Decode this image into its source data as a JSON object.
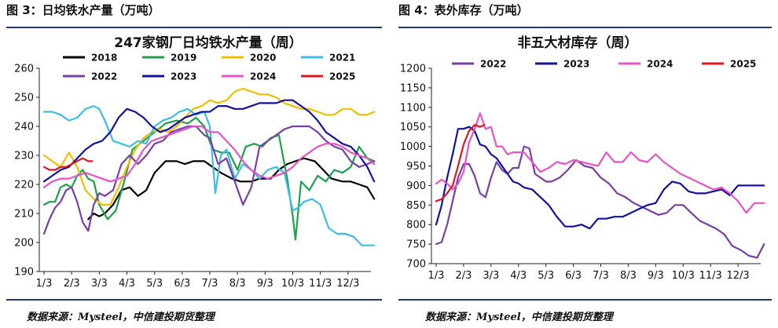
{
  "figures": [
    {
      "caption": "图 3：日均铁水产量（万吨）",
      "source": "数据来源：Mysteel，中信建投期货整理"
    },
    {
      "caption": "图 4：表外库存（万吨）",
      "source": "数据来源：Mysteel，中信建投期货整理"
    }
  ],
  "colors": {
    "2018": "#000000",
    "2019": "#1fa04a",
    "2020": "#f0c000",
    "2021": "#3cbde8",
    "2022": "#7a3fa6",
    "2023": "#12129e",
    "2024": "#ea52c8",
    "2025": "#e0161d",
    "rule": "#1f3864"
  },
  "chart_data": [
    {
      "type": "line",
      "title": "247家钢厂日均铁水产量（周）",
      "x_ticks": [
        "1/3",
        "2/3",
        "3/3",
        "4/3",
        "5/3",
        "6/3",
        "7/3",
        "8/3",
        "9/3",
        "10/3",
        "11/3",
        "12/3"
      ],
      "ylim": [
        190,
        260
      ],
      "y_ticks": [
        190,
        200,
        210,
        220,
        230,
        240,
        250,
        260
      ],
      "grid": false,
      "legend": "top",
      "series": [
        {
          "name": "2018",
          "x": [
            2.6,
            2.8,
            3.0,
            3.2,
            3.5,
            3.8,
            4.1,
            4.4,
            4.7,
            5.0,
            5.4,
            5.8,
            6.1,
            6.4,
            6.8,
            7.1,
            7.4,
            7.8,
            8.1,
            8.5,
            8.8,
            9.2,
            9.5,
            9.8,
            10.1,
            10.4,
            10.8,
            11.1,
            11.4,
            11.8,
            12.1,
            12.4,
            12.7,
            12.95
          ],
          "y": [
            208,
            210,
            209,
            210,
            213,
            218,
            219,
            216,
            218,
            224,
            228,
            228,
            227,
            228,
            228,
            226,
            224,
            222,
            221,
            221,
            222,
            222,
            225,
            227,
            228,
            229,
            228,
            225,
            222,
            221,
            221,
            220,
            219,
            215
          ]
        },
        {
          "name": "2019",
          "x": [
            1.0,
            1.2,
            1.4,
            1.6,
            1.8,
            2.0,
            2.2,
            2.4,
            2.6,
            2.8,
            3.0,
            3.3,
            3.6,
            3.9,
            4.2,
            4.6,
            5.0,
            5.4,
            5.8,
            6.2,
            6.5,
            6.8,
            7.1,
            7.4,
            7.7,
            8.0,
            8.3,
            8.6,
            8.9,
            9.2,
            9.5,
            9.8,
            10.0,
            10.1,
            10.3,
            10.6,
            10.9,
            11.2,
            11.5,
            11.8,
            12.1,
            12.4,
            12.7,
            12.95
          ],
          "y": [
            213,
            214,
            214,
            219,
            220,
            219,
            223,
            225,
            222,
            221,
            213,
            208,
            211,
            221,
            232,
            235,
            238,
            241,
            242,
            241,
            243,
            240,
            232,
            231,
            231,
            225,
            233,
            234,
            233,
            236,
            237,
            222,
            209,
            201,
            221,
            218,
            223,
            221,
            225,
            224,
            226,
            233,
            229,
            228
          ]
        },
        {
          "name": "2020",
          "x": [
            1.0,
            1.3,
            1.6,
            1.9,
            2.2,
            2.5,
            2.8,
            3.1,
            3.4,
            3.7,
            4.0,
            4.3,
            4.6,
            4.9,
            5.2,
            5.5,
            5.8,
            6.1,
            6.4,
            6.7,
            7.0,
            7.3,
            7.6,
            7.9,
            8.2,
            8.5,
            8.8,
            9.1,
            9.4,
            9.7,
            10.0,
            10.3,
            10.6,
            10.9,
            11.2,
            11.5,
            11.8,
            12.1,
            12.4,
            12.7,
            12.95
          ],
          "y": [
            230,
            228,
            226,
            231,
            226,
            218,
            215,
            213,
            213,
            219,
            226,
            232,
            236,
            238,
            239,
            238,
            240,
            243,
            246,
            247,
            249,
            248,
            249,
            252,
            253,
            252,
            251,
            251,
            250,
            248,
            247,
            246,
            246,
            245,
            244,
            244,
            246,
            246,
            244,
            244,
            245
          ]
        },
        {
          "name": "2021",
          "x": [
            1.0,
            1.3,
            1.6,
            1.9,
            2.2,
            2.5,
            2.8,
            3.0,
            3.2,
            3.5,
            3.8,
            4.1,
            4.4,
            4.7,
            5.0,
            5.3,
            5.6,
            5.9,
            6.2,
            6.5,
            6.8,
            7.0,
            7.2,
            7.4,
            7.6,
            7.9,
            8.2,
            8.5,
            8.8,
            9.1,
            9.4,
            9.7,
            10.0,
            10.2,
            10.4,
            10.7,
            11.0,
            11.3,
            11.6,
            11.9,
            12.2,
            12.5,
            12.8,
            12.95
          ],
          "y": [
            245,
            245,
            244,
            242,
            243,
            246,
            247,
            246,
            242,
            235,
            234,
            233,
            235,
            234,
            240,
            242,
            243,
            245,
            246,
            244,
            245,
            240,
            217,
            230,
            232,
            222,
            227,
            225,
            222,
            225,
            226,
            224,
            211,
            212,
            214,
            215,
            213,
            205,
            203,
            203,
            202,
            199,
            199,
            199
          ]
        },
        {
          "name": "2022",
          "x": [
            1.0,
            1.2,
            1.4,
            1.6,
            1.8,
            2.0,
            2.2,
            2.4,
            2.6,
            2.8,
            3.0,
            3.2,
            3.5,
            3.8,
            4.1,
            4.4,
            4.7,
            5.0,
            5.3,
            5.6,
            5.9,
            6.2,
            6.5,
            6.8,
            7.0,
            7.3,
            7.6,
            7.9,
            8.2,
            8.5,
            8.8,
            9.1,
            9.4,
            9.7,
            10.0,
            10.3,
            10.6,
            10.9,
            11.2,
            11.5,
            11.8,
            12.1,
            12.4,
            12.7,
            12.95
          ],
          "y": [
            203,
            208,
            212,
            214,
            218,
            219,
            214,
            207,
            204,
            213,
            217,
            216,
            218,
            227,
            230,
            227,
            230,
            234,
            235,
            238,
            239,
            240,
            240,
            237,
            236,
            227,
            229,
            221,
            213,
            219,
            233,
            235,
            237,
            239,
            240,
            240,
            240,
            238,
            235,
            233,
            232,
            228,
            226,
            227,
            228
          ]
        },
        {
          "name": "2023",
          "x": [
            1.0,
            1.3,
            1.6,
            1.9,
            2.2,
            2.5,
            2.8,
            3.1,
            3.4,
            3.7,
            4.0,
            4.3,
            4.6,
            4.9,
            5.2,
            5.5,
            5.8,
            6.1,
            6.4,
            6.7,
            7.0,
            7.3,
            7.6,
            7.9,
            8.2,
            8.5,
            8.8,
            9.1,
            9.4,
            9.7,
            10.0,
            10.3,
            10.6,
            10.9,
            11.2,
            11.5,
            11.8,
            12.1,
            12.4,
            12.7,
            12.95
          ],
          "y": [
            221,
            223,
            225,
            226,
            229,
            232,
            234,
            235,
            238,
            243,
            246,
            245,
            243,
            240,
            238,
            239,
            241,
            243,
            244,
            245,
            245,
            247,
            247,
            246,
            246,
            247,
            248,
            248,
            248,
            249,
            249,
            247,
            245,
            242,
            238,
            236,
            234,
            233,
            230,
            226,
            221
          ]
        },
        {
          "name": "2024",
          "x": [
            1.0,
            1.3,
            1.6,
            1.9,
            2.2,
            2.5,
            2.8,
            3.1,
            3.4,
            3.7,
            4.0,
            4.3,
            4.6,
            4.9,
            5.2,
            5.5,
            5.8,
            6.1,
            6.4,
            6.7,
            7.0,
            7.3,
            7.6,
            7.9,
            8.2,
            8.5,
            8.8,
            9.1,
            9.4,
            9.7,
            10.0,
            10.3,
            10.6,
            10.9,
            11.2,
            11.5,
            11.8,
            12.1,
            12.4,
            12.7,
            12.95
          ],
          "y": [
            219,
            221,
            222,
            222,
            223,
            224,
            223,
            222,
            221,
            222,
            223,
            227,
            232,
            235,
            236,
            237,
            238,
            239,
            240,
            240,
            238,
            238,
            235,
            232,
            228,
            225,
            223,
            222,
            223,
            224,
            226,
            229,
            231,
            233,
            234,
            234,
            233,
            231,
            230,
            229,
            227
          ]
        },
        {
          "name": "2025",
          "x": [
            1.0,
            1.2,
            1.4,
            1.6,
            1.8,
            2.0,
            2.2,
            2.4,
            2.6,
            2.75
          ],
          "y": [
            226,
            225,
            225,
            226,
            226,
            227,
            228,
            229,
            228,
            228
          ]
        }
      ]
    },
    {
      "type": "line",
      "title": "非五大材库存（周）",
      "x_ticks": [
        "1/3",
        "2/3",
        "3/3",
        "4/3",
        "5/3",
        "6/3",
        "7/3",
        "8/3",
        "9/3",
        "10/3",
        "11/3",
        "12/3"
      ],
      "ylim": [
        700,
        1200
      ],
      "y_ticks": [
        700,
        750,
        800,
        850,
        900,
        950,
        1000,
        1050,
        1100,
        1150,
        1200
      ],
      "grid": false,
      "legend": "top",
      "series": [
        {
          "name": "2022",
          "x": [
            1.0,
            1.2,
            1.4,
            1.6,
            1.8,
            2.0,
            2.2,
            2.4,
            2.6,
            2.8,
            3.0,
            3.2,
            3.4,
            3.6,
            3.8,
            4.0,
            4.2,
            4.4,
            4.6,
            4.8,
            5.0,
            5.2,
            5.5,
            5.8,
            6.1,
            6.4,
            6.7,
            7.0,
            7.3,
            7.6,
            7.9,
            8.2,
            8.5,
            8.8,
            9.1,
            9.4,
            9.7,
            10.0,
            10.3,
            10.6,
            10.9,
            11.2,
            11.5,
            11.8,
            12.1,
            12.4,
            12.7,
            12.95
          ],
          "y": [
            750,
            755,
            800,
            860,
            920,
            955,
            955,
            925,
            880,
            870,
            920,
            960,
            940,
            930,
            945,
            945,
            1000,
            995,
            930,
            920,
            910,
            910,
            920,
            940,
            965,
            950,
            945,
            920,
            905,
            880,
            870,
            855,
            845,
            835,
            825,
            830,
            850,
            850,
            830,
            810,
            800,
            790,
            775,
            745,
            735,
            720,
            715,
            750
          ]
        },
        {
          "name": "2023",
          "x": [
            1.0,
            1.2,
            1.4,
            1.6,
            1.8,
            2.0,
            2.2,
            2.4,
            2.6,
            2.8,
            3.0,
            3.2,
            3.4,
            3.6,
            3.8,
            4.0,
            4.2,
            4.5,
            4.8,
            5.1,
            5.4,
            5.7,
            6.0,
            6.3,
            6.6,
            6.9,
            7.2,
            7.5,
            7.8,
            8.1,
            8.4,
            8.7,
            9.0,
            9.3,
            9.6,
            9.9,
            10.2,
            10.5,
            10.8,
            11.1,
            11.4,
            11.7,
            12.0,
            12.3,
            12.6,
            12.95
          ],
          "y": [
            800,
            850,
            920,
            980,
            1045,
            1045,
            1050,
            1040,
            1005,
            1000,
            980,
            970,
            950,
            930,
            910,
            905,
            895,
            890,
            870,
            850,
            820,
            795,
            795,
            800,
            790,
            815,
            815,
            820,
            820,
            830,
            840,
            850,
            855,
            890,
            910,
            905,
            885,
            880,
            880,
            885,
            890,
            875,
            900,
            900,
            900,
            900
          ]
        },
        {
          "name": "2024",
          "x": [
            1.0,
            1.2,
            1.4,
            1.6,
            1.8,
            2.0,
            2.2,
            2.4,
            2.6,
            2.8,
            3.0,
            3.2,
            3.4,
            3.6,
            3.8,
            4.0,
            4.2,
            4.5,
            4.8,
            5.1,
            5.4,
            5.7,
            6.0,
            6.3,
            6.6,
            6.9,
            7.2,
            7.5,
            7.8,
            8.1,
            8.4,
            8.7,
            9.0,
            9.3,
            9.6,
            9.9,
            10.2,
            10.5,
            10.8,
            11.1,
            11.4,
            11.7,
            12.0,
            12.3,
            12.6,
            12.95
          ],
          "y": [
            905,
            915,
            905,
            890,
            905,
            935,
            1010,
            1045,
            1085,
            1045,
            1050,
            1000,
            1000,
            980,
            985,
            985,
            985,
            960,
            935,
            945,
            960,
            955,
            965,
            960,
            955,
            950,
            985,
            960,
            960,
            985,
            965,
            960,
            980,
            960,
            945,
            930,
            920,
            910,
            900,
            890,
            895,
            880,
            860,
            830,
            855,
            855
          ]
        },
        {
          "name": "2025",
          "x": [
            1.0,
            1.2,
            1.4,
            1.6,
            1.8,
            2.0,
            2.2,
            2.4,
            2.6,
            2.75
          ],
          "y": [
            860,
            865,
            880,
            900,
            950,
            1005,
            1040,
            1055,
            1050,
            1055
          ]
        }
      ]
    }
  ]
}
